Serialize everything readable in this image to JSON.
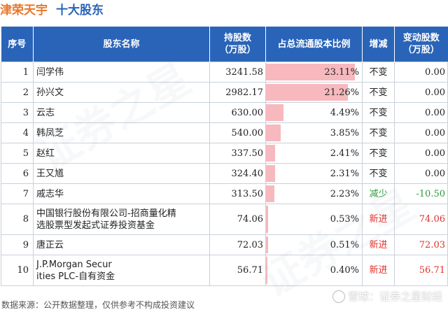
{
  "header": {
    "company": "津荣天宇",
    "section": "十大股东"
  },
  "table": {
    "columns": {
      "idx": "序号",
      "name": "股东名称",
      "holding_l1": "持股数",
      "holding_l2": "（万股）",
      "ratio": "占总流通股本比例",
      "change": "增减",
      "delta_l1": "变动股数",
      "delta_l2": "（万股）"
    },
    "rows": [
      {
        "idx": "1",
        "name": "闫学伟",
        "holding": "3241.58",
        "ratio": "23.11%",
        "ratio_value": 23.11,
        "change": "不变",
        "delta": "0.00"
      },
      {
        "idx": "2",
        "name": "孙兴文",
        "holding": "2982.17",
        "ratio": "21.26%",
        "ratio_value": 21.26,
        "change": "不变",
        "delta": "0.00"
      },
      {
        "idx": "3",
        "name": "云志",
        "holding": "630.00",
        "ratio": "4.49%",
        "ratio_value": 4.49,
        "change": "不变",
        "delta": "0.00"
      },
      {
        "idx": "4",
        "name": "韩凤芝",
        "holding": "540.00",
        "ratio": "3.85%",
        "ratio_value": 3.85,
        "change": "不变",
        "delta": "0.00"
      },
      {
        "idx": "5",
        "name": "赵红",
        "holding": "337.50",
        "ratio": "2.41%",
        "ratio_value": 2.41,
        "change": "不变",
        "delta": "0.00"
      },
      {
        "idx": "6",
        "name": "王又馗",
        "holding": "324.40",
        "ratio": "2.31%",
        "ratio_value": 2.31,
        "change": "不变",
        "delta": "0.00"
      },
      {
        "idx": "7",
        "name": "戚志华",
        "holding": "313.50",
        "ratio": "2.23%",
        "ratio_value": 2.23,
        "change": "减少",
        "delta": "-10.50"
      },
      {
        "idx": "8",
        "name_l1": "中国银行股份有限公司-招商量化精",
        "name_l2": "选股票型发起式证券投资基金",
        "holding": "74.06",
        "ratio": "0.53%",
        "ratio_value": 0.53,
        "change": "新进",
        "delta": "74.06"
      },
      {
        "idx": "9",
        "name": "唐正云",
        "holding": "72.03",
        "ratio": "0.51%",
        "ratio_value": 0.51,
        "change": "新进",
        "delta": "72.03"
      },
      {
        "idx": "10",
        "name_l1": "J.P.Morgan Secur",
        "name_l2": "ities PLC-自有资金",
        "holding": "56.71",
        "ratio": "0.40%",
        "ratio_value": 0.4,
        "change": "新进",
        "delta": "56.71"
      }
    ]
  },
  "footer": {
    "source": "数据来源：公开数据整理，仅供参考不构成投资建议"
  },
  "brand": {
    "text": "雪球：证券之星财经"
  },
  "watermark": {
    "text": "证券之星"
  },
  "colors": {
    "company": "#e8782a",
    "section": "#2a64b8",
    "header_bg": "#2a64b8",
    "bar": "#f7b9bd",
    "increase": "#e0302a",
    "decrease": "#2e9b3a"
  }
}
